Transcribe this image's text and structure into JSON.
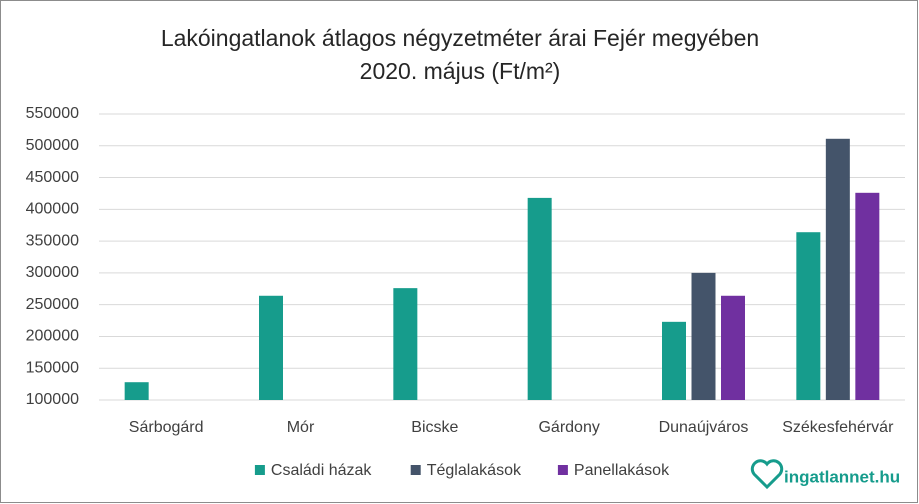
{
  "chart_data": {
    "type": "bar",
    "title": [
      "Lakóingatlanok átlagos négyzetméter árai Fejér megyében",
      "2020. május (Ft/m²)"
    ],
    "categories": [
      "Sárbogárd",
      "Mór",
      "Bicske",
      "Gárdony",
      "Dunaújváros",
      "Székesfehérvár"
    ],
    "series": [
      {
        "name": "Családi házak",
        "color": "#169c8c",
        "values": [
          128000,
          264000,
          276000,
          418000,
          223000,
          364000
        ]
      },
      {
        "name": "Téglalakások",
        "color": "#44546a",
        "values": [
          null,
          null,
          null,
          null,
          300000,
          511000
        ]
      },
      {
        "name": "Panellakások",
        "color": "#7030a0",
        "values": [
          null,
          null,
          null,
          null,
          264000,
          426000
        ]
      }
    ],
    "ylim": [
      100000,
      550000
    ],
    "yticks": [
      100000,
      150000,
      200000,
      250000,
      300000,
      350000,
      400000,
      450000,
      500000,
      550000
    ],
    "grid": true,
    "legend": "bottom",
    "logo": "ingatlannet.hu"
  }
}
